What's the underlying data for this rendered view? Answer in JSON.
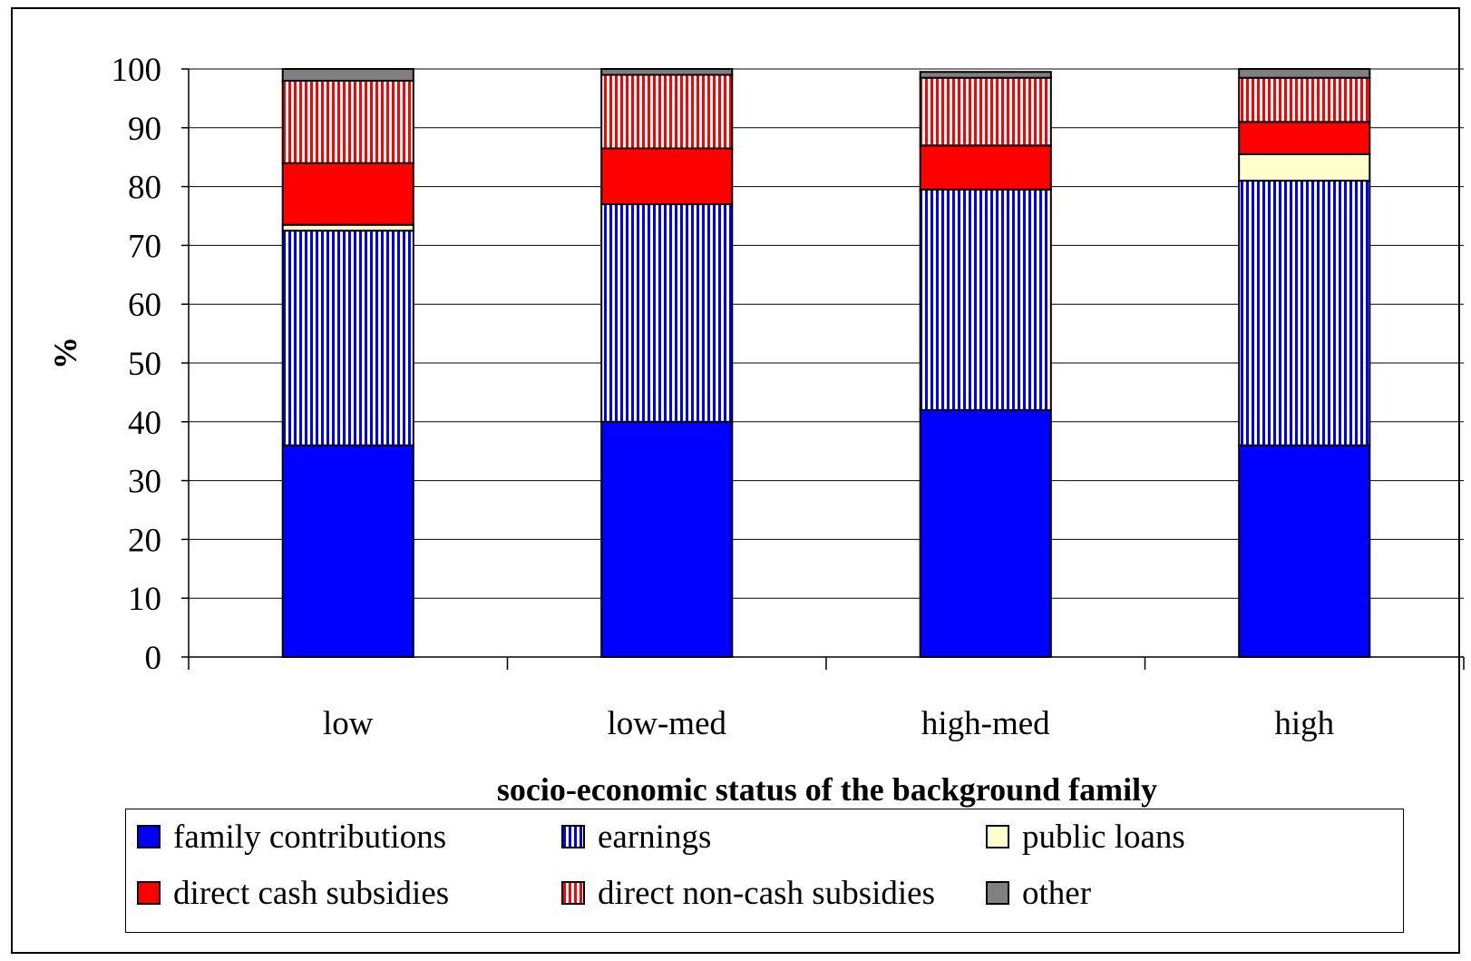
{
  "chart_data": {
    "type": "bar",
    "stacked": true,
    "categories": [
      "low",
      "low-med",
      "high-med",
      "high"
    ],
    "series": [
      {
        "name": "family contributions",
        "values": [
          36,
          40,
          42,
          36
        ],
        "color": "#0000ff",
        "pattern": "solid"
      },
      {
        "name": "earnings",
        "values": [
          36.5,
          37,
          37.5,
          45
        ],
        "color": "#0000ff",
        "pattern": "vertical-stripes"
      },
      {
        "name": "public loans",
        "values": [
          1,
          0,
          0,
          4.5
        ],
        "color": "#ffffcc",
        "pattern": "solid"
      },
      {
        "name": "direct cash subsidies",
        "values": [
          10.5,
          9.5,
          7.5,
          5.5
        ],
        "color": "#ff0000",
        "pattern": "solid"
      },
      {
        "name": "direct non-cash subsidies",
        "values": [
          14,
          12.5,
          11.5,
          7.5
        ],
        "color": "#ff0000",
        "pattern": "vertical-stripes"
      },
      {
        "name": "other",
        "values": [
          2,
          1,
          1,
          1.5
        ],
        "color": "#808080",
        "pattern": "solid"
      }
    ],
    "xlabel": "socio-economic status of the background family",
    "ylabel": "%",
    "ylim": [
      0,
      100
    ],
    "yticks": [
      "0",
      "10",
      "20",
      "30",
      "40",
      "50",
      "60",
      "70",
      "80",
      "90",
      "100"
    ],
    "grid": true,
    "legend_position": "bottom"
  }
}
